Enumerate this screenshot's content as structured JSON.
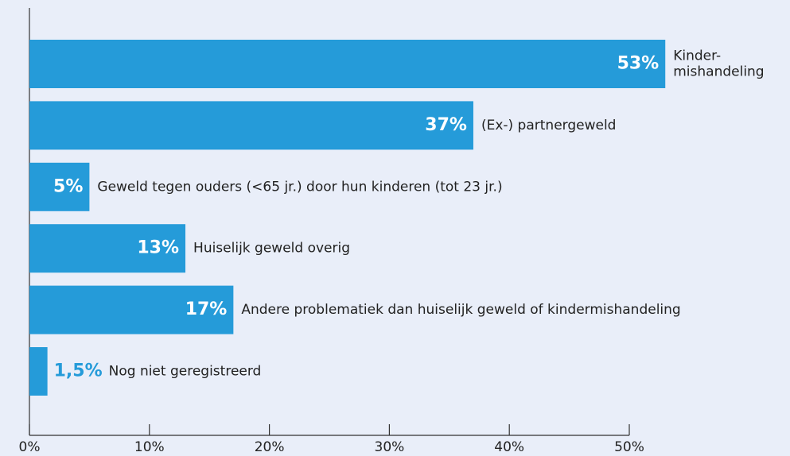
{
  "chart_data": {
    "type": "barh",
    "categories": [
      "Kinder-\nmishandeling",
      "(Ex-) partnergeweld",
      "Geweld tegen ouders (<65 jr.) door hun kinderen (tot 23 jr.)",
      "Huiselijk geweld overig",
      "Andere problematiek dan huiselijk geweld of kindermishandeling",
      "Nog niet geregistreerd"
    ],
    "values": [
      53,
      37,
      5,
      13,
      17,
      1.5
    ],
    "value_labels": [
      "53%",
      "37%",
      "5%",
      "13%",
      "17%",
      "1,5%"
    ],
    "color": "#259bd9",
    "xlim": [
      0,
      50
    ],
    "xticks": [
      {
        "value": 0,
        "label": "0%"
      },
      {
        "value": 10,
        "label": "10%"
      },
      {
        "value": 20,
        "label": "20%"
      },
      {
        "value": 30,
        "label": "30%"
      },
      {
        "value": 40,
        "label": "40%"
      },
      {
        "value": 50,
        "label": "50%"
      }
    ],
    "grid": false
  }
}
